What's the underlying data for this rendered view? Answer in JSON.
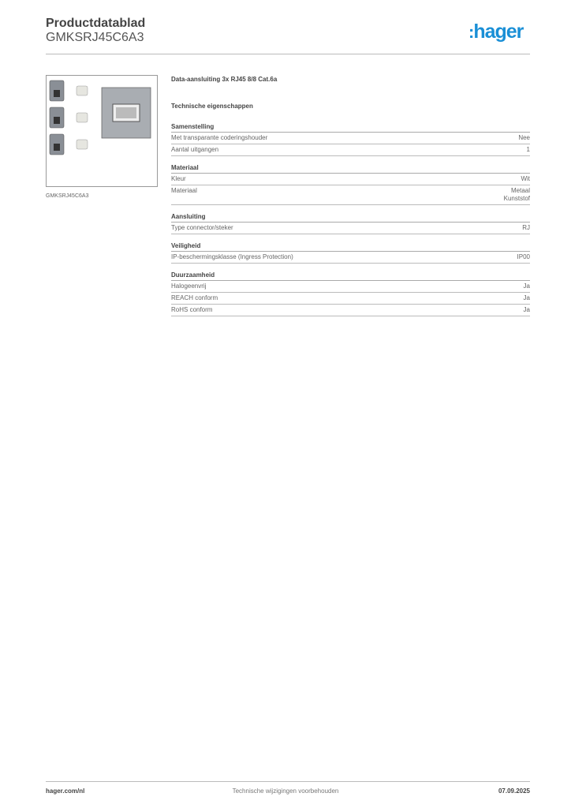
{
  "header": {
    "title": "Productdatablad",
    "product_code": "GMKSRJ45C6A3",
    "logo": "hager",
    "logo_color": "#1a8fd6"
  },
  "image": {
    "caption": "GMKSRJ45C6A3"
  },
  "description": "Data-aansluiting 3x RJ45 8/8 Cat.6a",
  "technical_heading": "Technische eigenschappen",
  "sections": [
    {
      "title": "Samenstelling",
      "rows": [
        {
          "label": "Met transparante coderingshouder",
          "value": "Nee"
        },
        {
          "label": "Aantal uitgangen",
          "value": "1"
        }
      ]
    },
    {
      "title": "Materiaal",
      "rows": [
        {
          "label": "Kleur",
          "value": "Wit"
        },
        {
          "label": "Materiaal",
          "value": "Metaal",
          "value2": "Kunststof"
        }
      ]
    },
    {
      "title": "Aansluiting",
      "rows": [
        {
          "label": "Type connector/steker",
          "value": "RJ"
        }
      ]
    },
    {
      "title": "Veiligheid",
      "rows": [
        {
          "label": "IP-beschermingsklasse (Ingress Protection)",
          "value": "IP00"
        }
      ]
    },
    {
      "title": "Duurzaamheid",
      "rows": [
        {
          "label": "Halogeenvrij",
          "value": "Ja"
        },
        {
          "label": "REACH conform",
          "value": "Ja"
        },
        {
          "label": "RoHS conform",
          "value": "Ja"
        }
      ]
    }
  ],
  "footer": {
    "website": "hager.com/nl",
    "disclaimer": "Technische wijzigingen voorbehouden",
    "date": "07.09.2025"
  }
}
